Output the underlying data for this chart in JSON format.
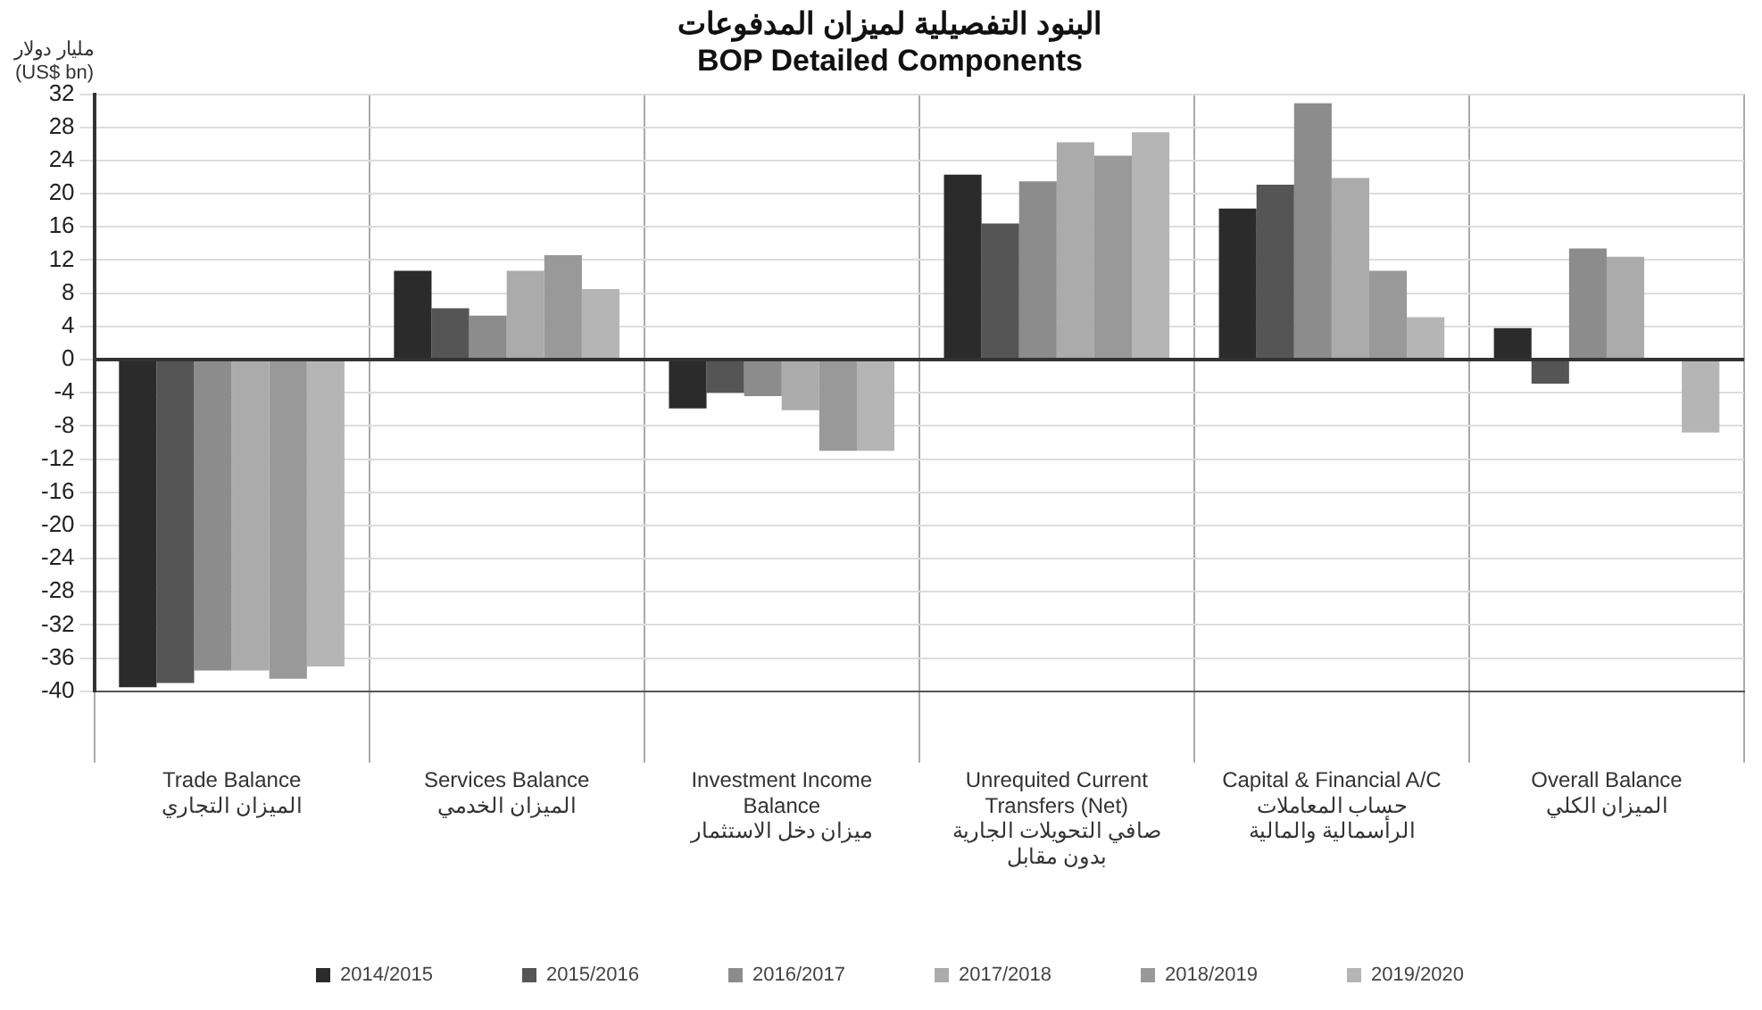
{
  "chart_data": {
    "type": "bar",
    "title": "البنود التفصيلية لميزان المدفوعات\nBOP Detailed Components",
    "ylabel": "مليار دولار\n(US$ bn)",
    "categories": [
      "Trade Balance\nالميزان التجاري",
      "Services Balance\nالميزان الخدمي",
      "Investment Income Balance\nميزان دخل الاستثمار",
      "Unrequited Current Transfers (Net)\nصافي التحويلات الجارية بدون مقابل",
      "Capital & Financial A/C\nحساب المعاملات الرأسمالية والمالية",
      "Overall Balance\nالميزان الكلي"
    ],
    "series": [
      {
        "name": "2014/2015",
        "color": "#2b2b2b",
        "values": [
          -39.5,
          10.7,
          -5.9,
          22.3,
          18.2,
          3.8
        ]
      },
      {
        "name": "2015/2016",
        "color": "#555555",
        "values": [
          -39,
          6.2,
          -4,
          16.4,
          21.1,
          -2.9
        ]
      },
      {
        "name": "2016/2017",
        "color": "#8c8c8c",
        "values": [
          -37.5,
          5.3,
          -4.4,
          21.5,
          30.9,
          13.4
        ]
      },
      {
        "name": "2017/2018",
        "color": "#ababab",
        "values": [
          -37.5,
          10.7,
          -6.1,
          26.2,
          21.9,
          12.4
        ]
      },
      {
        "name": "2018/2019",
        "color": "#999999",
        "values": [
          -38.5,
          12.6,
          -11,
          24.6,
          10.7,
          null
        ]
      },
      {
        "name": "2019/2020",
        "color": "#b5b5b5",
        "values": [
          -37,
          8.5,
          -11,
          27.4,
          5.1,
          -8.8
        ]
      }
    ],
    "ylim": [
      -40,
      32
    ],
    "yticks": [
      -40,
      -36,
      -32,
      -28,
      -24,
      -20,
      -16,
      -12,
      -8,
      -4,
      0,
      4,
      8,
      12,
      16,
      20,
      24,
      28,
      32
    ],
    "grid": "y",
    "legend": "bottom"
  }
}
